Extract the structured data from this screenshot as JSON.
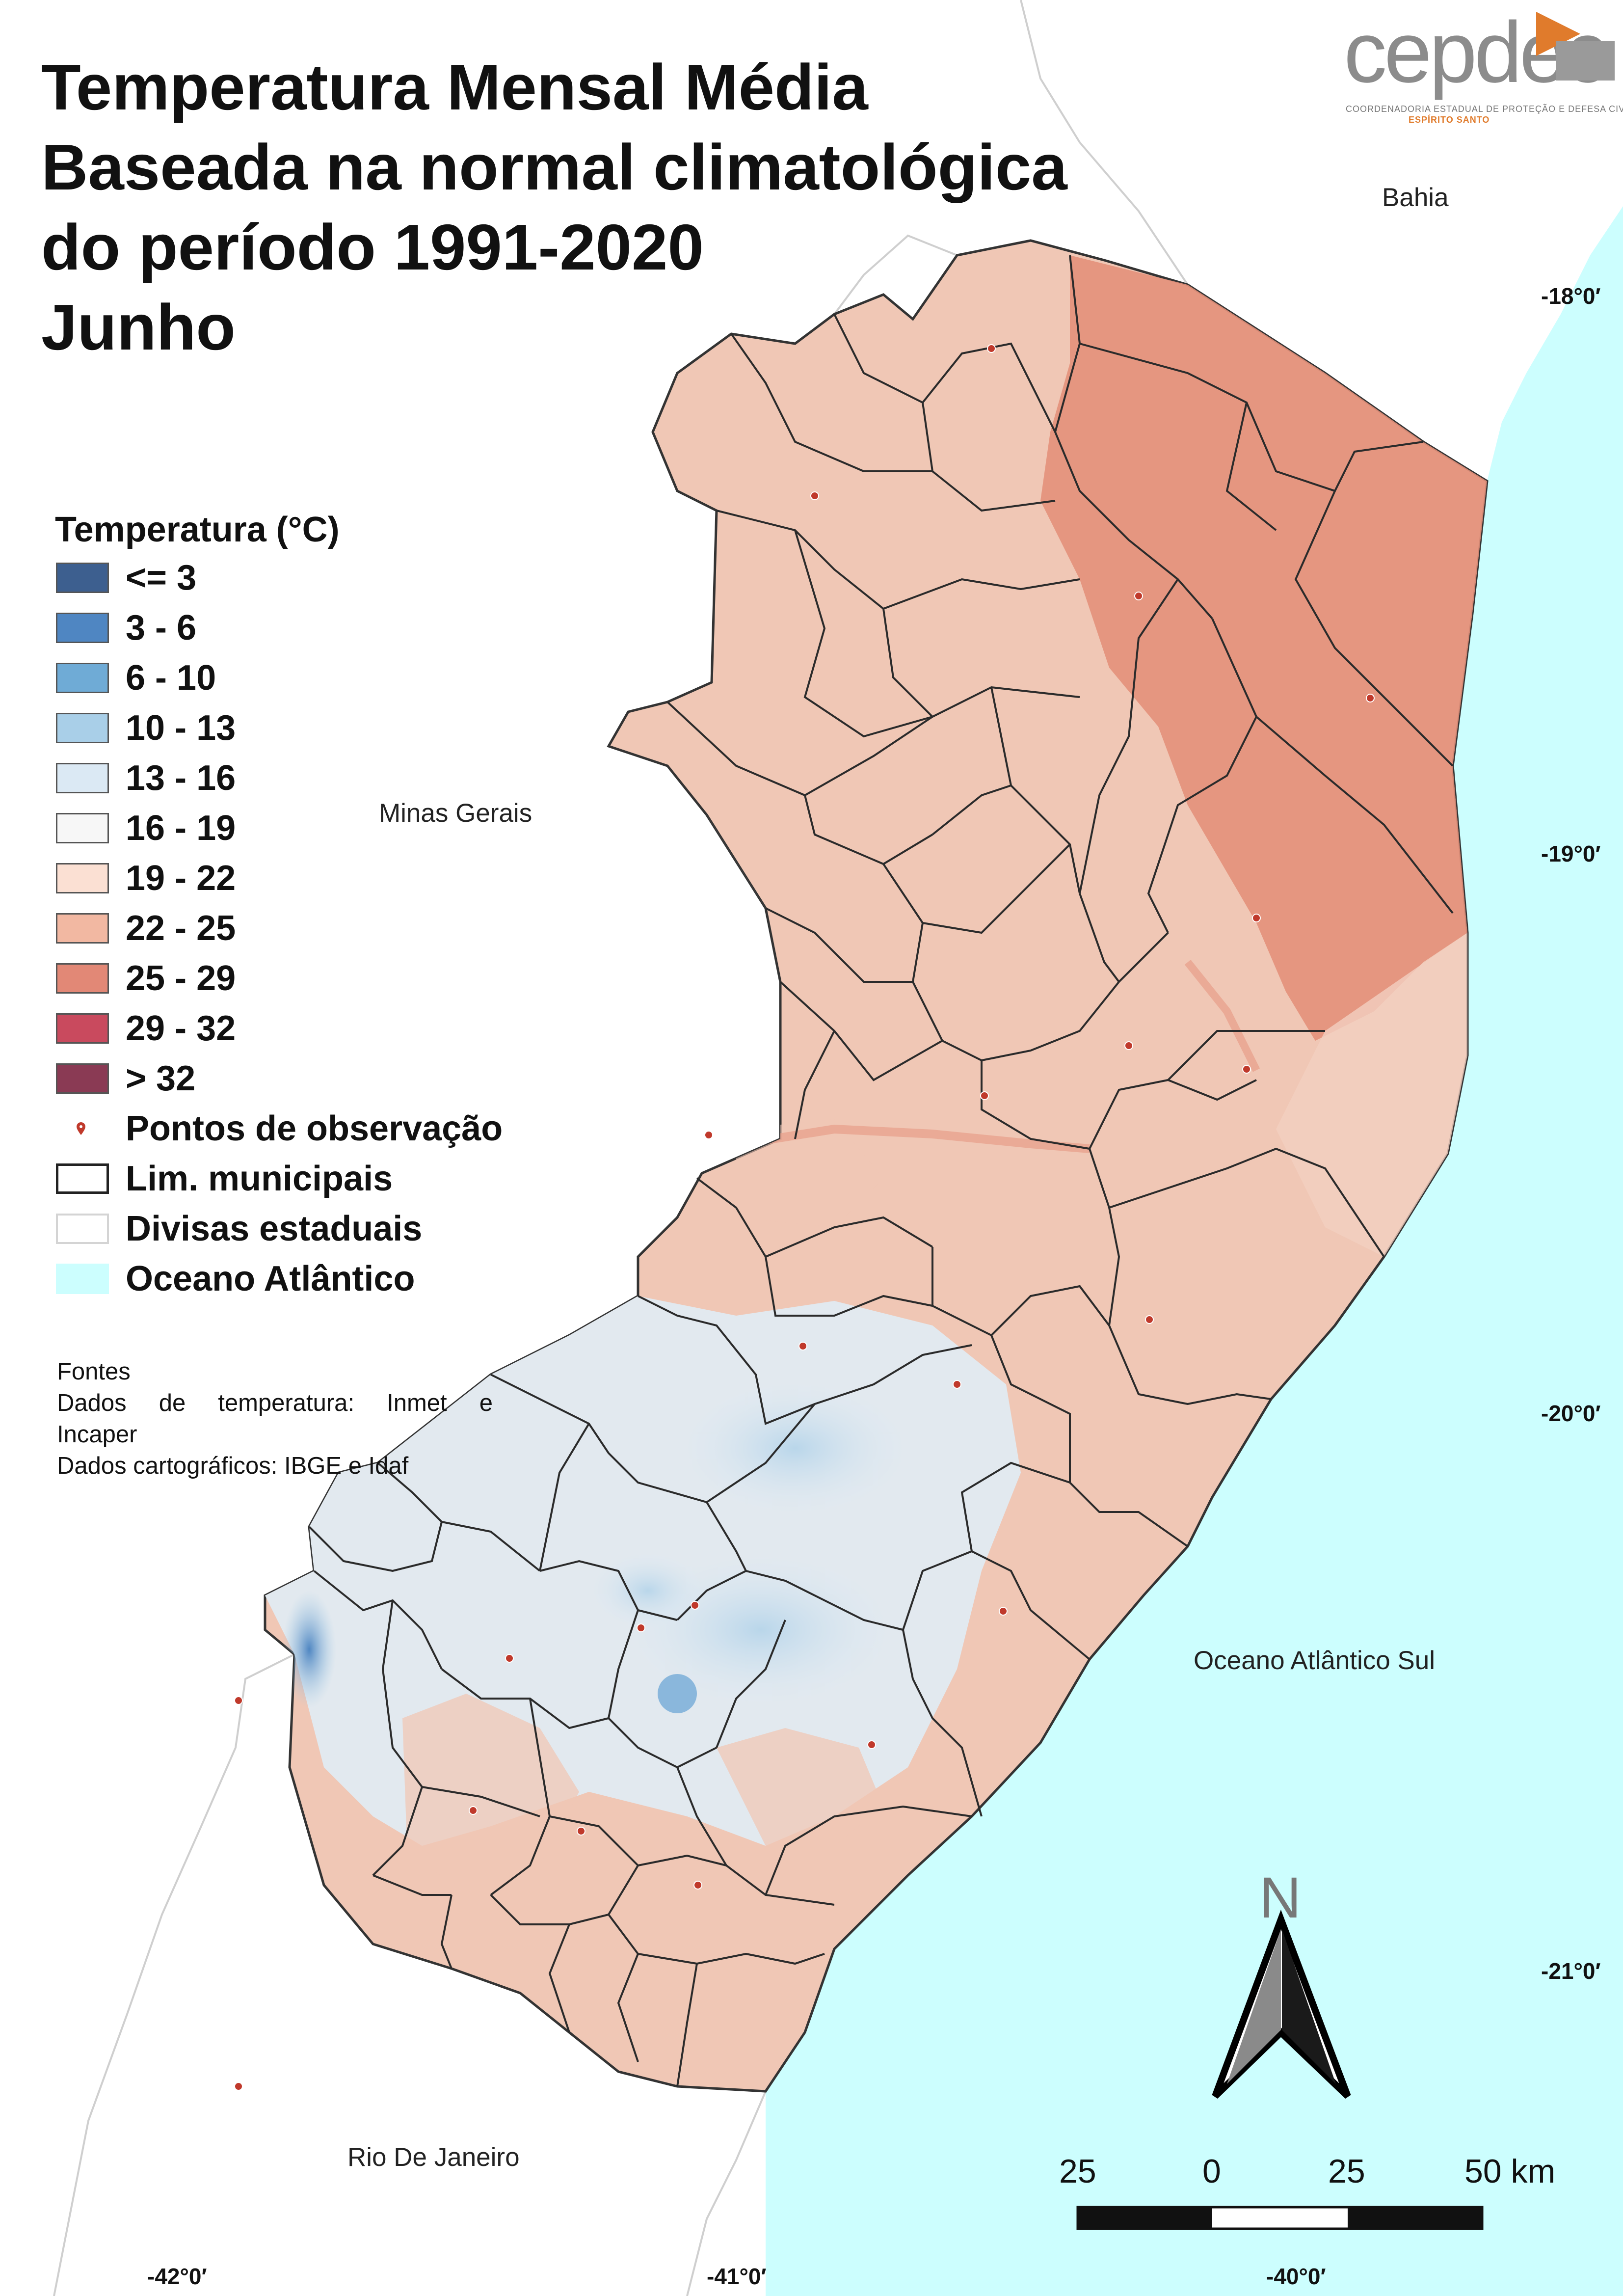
{
  "title": {
    "line1": "Temperatura Mensal Média",
    "line2": "Baseada na normal climatológica",
    "line3": "do período 1991-2020",
    "line4": "Junho"
  },
  "logo": {
    "word": "cepdec",
    "subtitle": "COORDENADORIA ESTADUAL DE PROTEÇÃO E DEFESA CIVIL",
    "state": "ESPÍRITO SANTO",
    "accent_color": "#e07b2c"
  },
  "legend": {
    "title": "Temperatura (°C)",
    "classes": [
      {
        "label": "<= 3",
        "color": "#3d5f8f"
      },
      {
        "label": "3 - 6",
        "color": "#4f86c2"
      },
      {
        "label": "6 - 10",
        "color": "#6fabd6"
      },
      {
        "label": "10 - 13",
        "color": "#a9cfe8"
      },
      {
        "label": "13 - 16",
        "color": "#dbe9f4"
      },
      {
        "label": "16 - 19",
        "color": "#f7f7f7"
      },
      {
        "label": "19 - 22",
        "color": "#fbe0d3"
      },
      {
        "label": "22 - 25",
        "color": "#f2b8a2"
      },
      {
        "label": "25 - 29",
        "color": "#e28876"
      },
      {
        "label": "29 - 32",
        "color": "#c94a5e"
      },
      {
        "label": "> 32",
        "color": "#8a3a54"
      }
    ],
    "observation_points": "Pontos de observação",
    "municipal_limits": "Lim. municipais",
    "state_borders": "Divisas estaduais",
    "ocean": "Oceano Atlântico",
    "ocean_color": "#ccfefe"
  },
  "sources": {
    "heading": "Fontes",
    "temp_words": [
      "Dados",
      "de",
      "temperatura:",
      "Inmet",
      "e"
    ],
    "temp_cont": "Incaper",
    "carto": "Dados cartográficos: IBGE e Idaf"
  },
  "places": {
    "bahia": "Bahia",
    "minas": "Minas Gerais",
    "rio": "Rio De Janeiro",
    "ocean": "Oceano Atlântico Sul"
  },
  "coordinates": {
    "lat": [
      "-18°0′",
      "-19°0′",
      "-20°0′",
      "-21°0′"
    ],
    "lon": [
      "-42°0′",
      "-41°0′",
      "-40°0′"
    ]
  },
  "scale_bar": {
    "labels": [
      "25",
      "0",
      "25",
      "50 km"
    ]
  },
  "north_arrow": {
    "letter": "N"
  }
}
